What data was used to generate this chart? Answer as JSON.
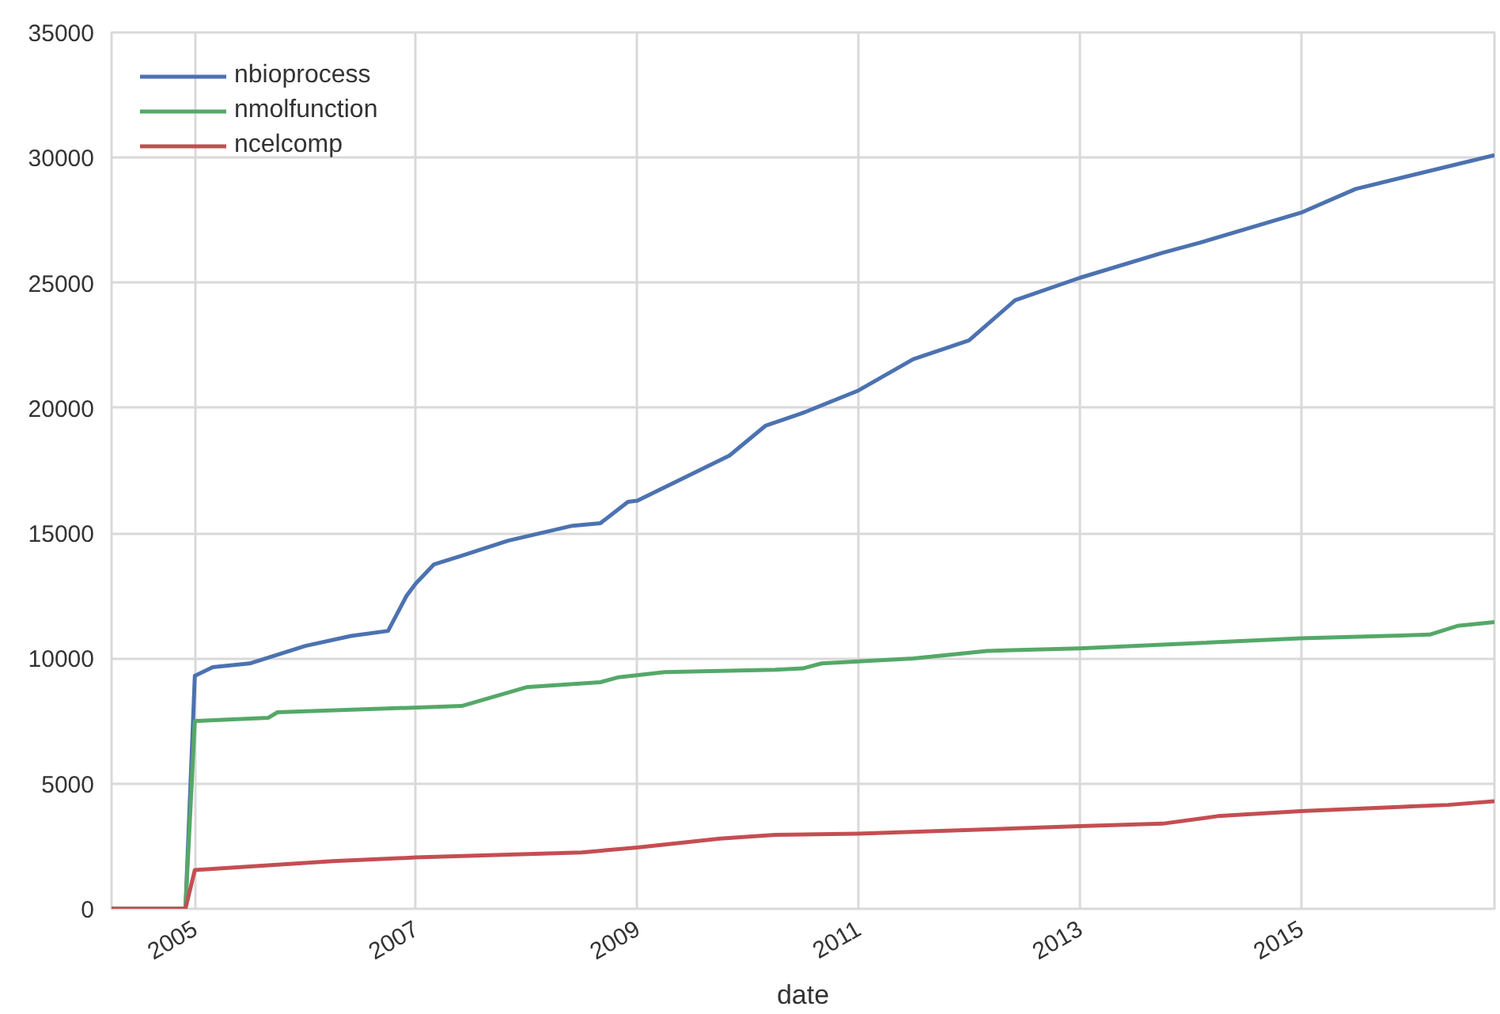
{
  "chart_data": {
    "type": "line",
    "xlabel": "date",
    "xlim": [
      "2004-04",
      "2016-10"
    ],
    "ylim": [
      0,
      35000
    ],
    "xticks": [
      {
        "value": "2005",
        "label": "2005"
      },
      {
        "value": "2007",
        "label": "2007"
      },
      {
        "value": "2009",
        "label": "2009"
      },
      {
        "value": "2011",
        "label": "2011"
      },
      {
        "value": "2013",
        "label": "2013"
      },
      {
        "value": "2015",
        "label": "2015"
      }
    ],
    "yticks": [
      0,
      5000,
      10000,
      15000,
      20000,
      25000,
      30000,
      35000
    ],
    "grid": true,
    "legend": "top left",
    "line_style": "solid",
    "marker": "none",
    "series": [
      {
        "name": "nbioprocess",
        "color": "#4c72b0",
        "x": [
          "2004-04",
          "2004-12",
          "2005-01",
          "2005-03",
          "2005-07",
          "2006-01",
          "2006-06",
          "2006-10",
          "2006-12",
          "2007-01",
          "2007-03",
          "2007-06",
          "2007-11",
          "2008-06",
          "2008-09",
          "2008-12",
          "2009-01",
          "2009-11",
          "2010-03",
          "2010-07",
          "2011-01",
          "2011-07",
          "2012-01",
          "2012-06",
          "2013-01",
          "2013-10",
          "2014-02",
          "2015-01",
          "2015-07",
          "2016-10"
        ],
        "values": [
          0,
          0,
          9300,
          9650,
          9800,
          10500,
          10900,
          11100,
          12500,
          13000,
          13750,
          14100,
          14700,
          15300,
          15400,
          16250,
          16300,
          18100,
          19300,
          19800,
          20700,
          21950,
          22700,
          24300,
          25200,
          26200,
          26600,
          27800,
          28750,
          30100
        ]
      },
      {
        "name": "nmolfunction",
        "color": "#55a868",
        "x": [
          "2004-04",
          "2004-12",
          "2005-01",
          "2005-09",
          "2005-10",
          "2007-06",
          "2008-01",
          "2008-09",
          "2008-11",
          "2009-04",
          "2010-04",
          "2010-07",
          "2010-09",
          "2011-07",
          "2012-03",
          "2013-01",
          "2015-01",
          "2016-03",
          "2016-06",
          "2016-10"
        ],
        "values": [
          0,
          0,
          7500,
          7630,
          7850,
          8100,
          8850,
          9050,
          9250,
          9450,
          9550,
          9600,
          9800,
          10000,
          10300,
          10400,
          10800,
          10950,
          11300,
          11450
        ]
      },
      {
        "name": "ncelcomp",
        "color": "#c44e52",
        "x": [
          "2004-04",
          "2004-12",
          "2005-01",
          "2006-04",
          "2007-01",
          "2008-07",
          "2009-01",
          "2009-10",
          "2010-04",
          "2011-01",
          "2013-01",
          "2013-10",
          "2014-04",
          "2015-01",
          "2016-05",
          "2016-10"
        ],
        "values": [
          0,
          0,
          1550,
          1900,
          2050,
          2250,
          2450,
          2800,
          2950,
          3000,
          3300,
          3400,
          3700,
          3900,
          4150,
          4300
        ]
      }
    ]
  }
}
